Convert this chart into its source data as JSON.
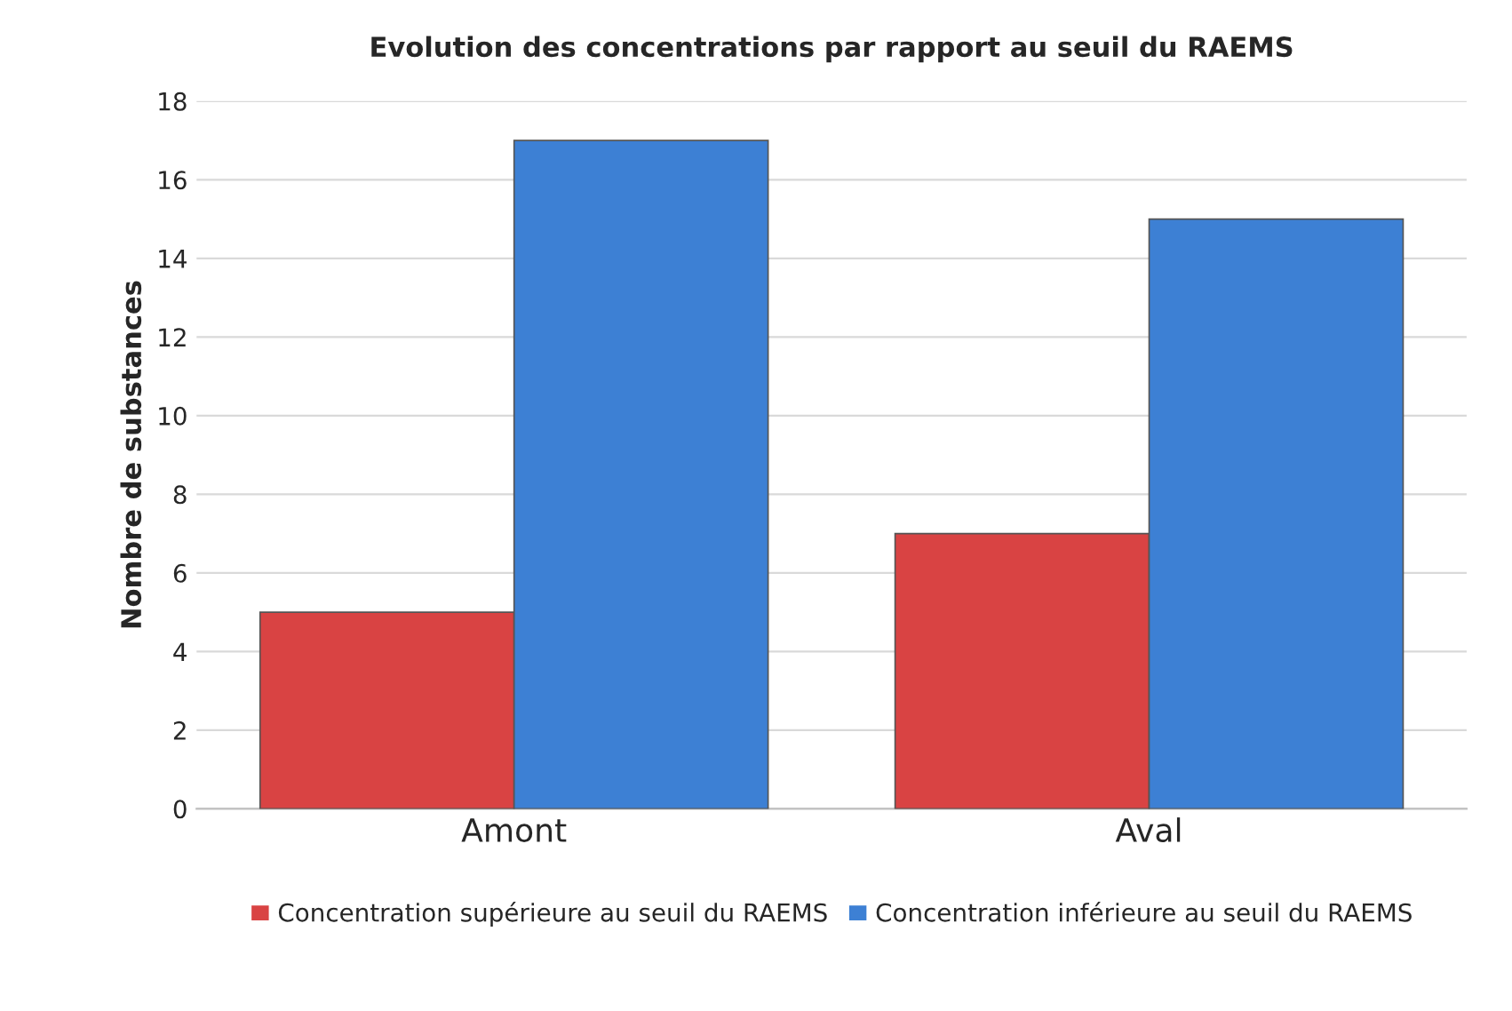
{
  "chart_data": {
    "type": "bar",
    "title": "Evolution des concentrations par rapport au seuil du RAEMS",
    "ylabel": "Nombre de substances",
    "categories": [
      "Amont",
      "Aval"
    ],
    "series": [
      {
        "name": "Concentration supérieure au seuil du RAEMS",
        "color": "#d94343",
        "values": [
          5,
          7
        ]
      },
      {
        "name": "Concentration inférieure au seuil du RAEMS",
        "color": "#3d80d4",
        "values": [
          17,
          15
        ]
      }
    ],
    "ylim": [
      0,
      18
    ],
    "yticks": [
      0,
      2,
      4,
      6,
      8,
      10,
      12,
      14,
      16,
      18
    ],
    "grid": "y",
    "legend": "bottom"
  }
}
